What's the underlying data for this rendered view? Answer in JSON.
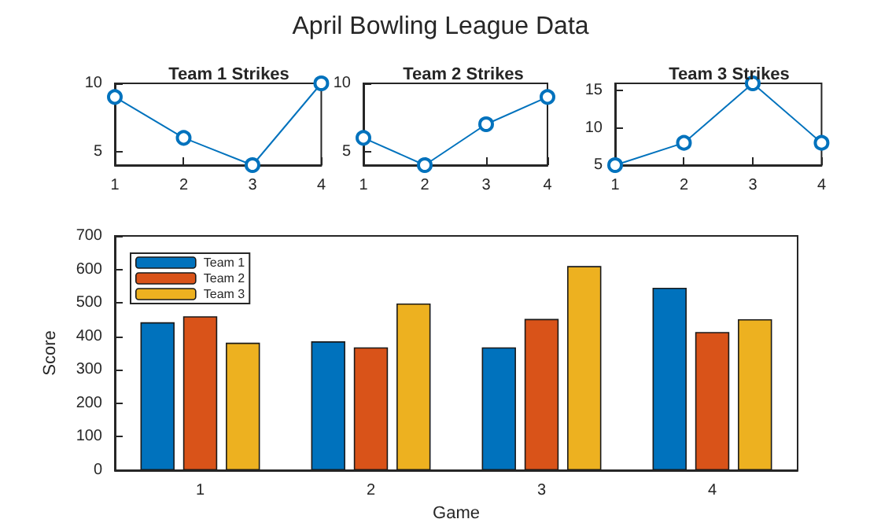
{
  "chart_data": [
    {
      "type": "line",
      "title": "Team 1 Strikes",
      "x": [
        1,
        2,
        3,
        4
      ],
      "values": [
        9,
        6,
        4,
        10
      ],
      "color": "#0072bd",
      "marker": "circle",
      "xlim": [
        1,
        4
      ],
      "xticks": [
        1,
        2,
        3,
        4
      ],
      "ylim": [
        4,
        10
      ],
      "yticks": [
        5,
        10
      ],
      "grid": false,
      "legend": false
    },
    {
      "type": "line",
      "title": "Team 2 Strikes",
      "annotations": [
        "April Bowling League Data"
      ],
      "x": [
        1,
        2,
        3,
        4
      ],
      "values": [
        6,
        4,
        7,
        9
      ],
      "color": "#0072bd",
      "marker": "circle",
      "xlim": [
        1,
        4
      ],
      "xticks": [
        1,
        2,
        3,
        4
      ],
      "ylim": [
        4,
        10
      ],
      "yticks": [
        5,
        10
      ],
      "grid": false,
      "legend": false
    },
    {
      "type": "line",
      "title": "Team 3 Strikes",
      "x": [
        1,
        2,
        3,
        4
      ],
      "values": [
        5,
        8,
        16,
        8
      ],
      "color": "#0072bd",
      "marker": "circle",
      "xlim": [
        1,
        4
      ],
      "xticks": [
        1,
        2,
        3,
        4
      ],
      "ylim": [
        5,
        16
      ],
      "yticks": [
        5,
        10,
        15
      ],
      "grid": false,
      "legend": false
    },
    {
      "type": "bar",
      "xlabel": "Game",
      "ylabel": "Score",
      "categories": [
        "1",
        "2",
        "3",
        "4"
      ],
      "series": [
        {
          "name": "Team 1",
          "color": "#0072bd",
          "values": [
            442,
            385,
            367,
            545
          ]
        },
        {
          "name": "Team 2",
          "color": "#d95319",
          "values": [
            460,
            367,
            452,
            413
          ]
        },
        {
          "name": "Team 3",
          "color": "#edb120",
          "values": [
            381,
            498,
            610,
            451
          ]
        }
      ],
      "ylim": [
        0,
        700
      ],
      "yticks": [
        0,
        100,
        200,
        300,
        400,
        500,
        600,
        700
      ],
      "grid": false,
      "legend": "top left"
    }
  ]
}
